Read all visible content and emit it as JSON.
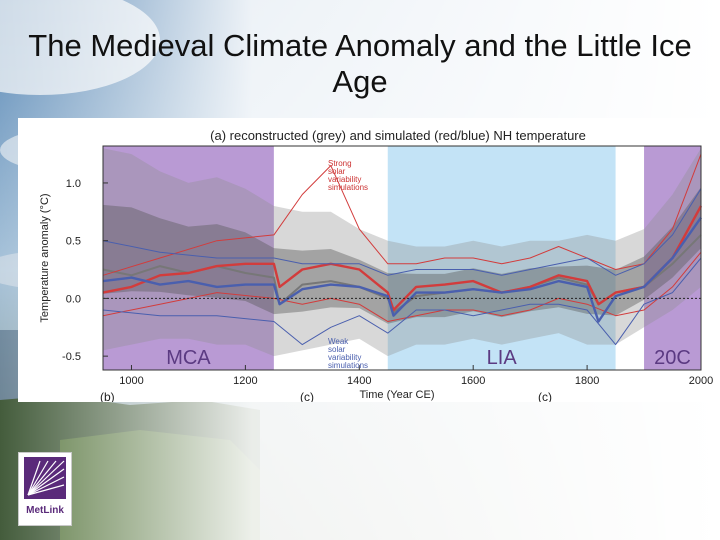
{
  "slide": {
    "title": "The Medieval Climate Anomaly and the Little Ice Age"
  },
  "logo": {
    "text": "MetLink"
  },
  "chart_data": {
    "type": "line",
    "title": "(a) reconstructed (grey) and simulated (red/blue) NH temperature",
    "xlabel": "Time (Year CE)",
    "ylabel": "Temperature anomaly (°C)",
    "xlim": [
      950,
      2000
    ],
    "ylim": [
      -0.62,
      1.32
    ],
    "x_ticks": [
      1000,
      1200,
      1400,
      1600,
      1800,
      2000
    ],
    "y_ticks": [
      1.0,
      0.5,
      0.0,
      -0.5
    ],
    "y_tick_labels": [
      "1.0",
      "0.5",
      "0.0",
      "-0.5"
    ],
    "reference_line": 0.0,
    "periods": [
      {
        "label": "MCA",
        "start": 950,
        "end": 1250,
        "color": "#b99ad4"
      },
      {
        "label": "LIA",
        "start": 1450,
        "end": 1850,
        "color": "#c3e3f6"
      },
      {
        "label": "20C",
        "start": 1900,
        "end": 2000,
        "color": "#b99ad4"
      }
    ],
    "annotations": [
      {
        "text": "Strong solar variability simulations",
        "lines": [
          "Strong",
          "solar",
          "variability",
          "simulations"
        ],
        "color": "#cc3333"
      },
      {
        "text": "Weak solar variability simulations",
        "lines": [
          "Weak",
          "solar",
          "variability",
          "simulations"
        ],
        "color": "#4a5fae"
      }
    ],
    "panel_labels": [
      "(b)",
      "(c)",
      "(c)"
    ],
    "reconstruction_band": {
      "x": [
        950,
        1000,
        1050,
        1100,
        1150,
        1200,
        1250,
        1300,
        1350,
        1400,
        1450,
        1500,
        1550,
        1600,
        1650,
        1700,
        1750,
        1800,
        1850,
        1900,
        1950,
        2000
      ],
      "lower": [
        -0.45,
        -0.4,
        -0.35,
        -0.35,
        -0.4,
        -0.4,
        -0.5,
        -0.45,
        -0.4,
        -0.35,
        -0.5,
        -0.4,
        -0.4,
        -0.35,
        -0.4,
        -0.35,
        -0.3,
        -0.4,
        -0.4,
        -0.25,
        -0.1,
        0.1
      ],
      "upper": [
        1.3,
        1.25,
        1.1,
        1.0,
        1.05,
        0.95,
        0.8,
        0.75,
        0.75,
        0.6,
        0.5,
        0.45,
        0.45,
        0.5,
        0.45,
        0.5,
        0.5,
        0.55,
        0.5,
        0.6,
        0.9,
        1.3
      ]
    },
    "series": [
      {
        "color": "#777777",
        "kind": "reconstruction",
        "x": [
          950,
          1000,
          1050,
          1100,
          1150,
          1200,
          1250,
          1260,
          1300,
          1350,
          1400,
          1450,
          1460,
          1500,
          1550,
          1600,
          1650,
          1700,
          1750,
          1800,
          1820,
          1850,
          1900,
          1950,
          2000
        ],
        "values": [
          0.25,
          0.2,
          0.28,
          0.22,
          0.28,
          0.22,
          0.18,
          -0.05,
          0.12,
          0.15,
          0.1,
          0.0,
          -0.12,
          0.02,
          0.05,
          0.08,
          0.05,
          0.1,
          0.18,
          0.12,
          -0.05,
          0.05,
          0.1,
          0.3,
          0.55
        ]
      },
      {
        "color": "#d23c3c",
        "kind": "strong-solar-mean",
        "x": [
          950,
          1000,
          1050,
          1100,
          1150,
          1200,
          1250,
          1260,
          1300,
          1350,
          1400,
          1450,
          1460,
          1500,
          1550,
          1600,
          1650,
          1700,
          1750,
          1800,
          1820,
          1850,
          1900,
          1950,
          2000
        ],
        "values": [
          0.05,
          0.1,
          0.2,
          0.22,
          0.28,
          0.3,
          0.3,
          0.1,
          0.25,
          0.3,
          0.25,
          0.05,
          -0.1,
          0.1,
          0.12,
          0.15,
          0.05,
          0.1,
          0.2,
          0.15,
          -0.05,
          0.05,
          0.1,
          0.35,
          0.8
        ]
      },
      {
        "color": "#d23c3c",
        "kind": "strong-solar-upper",
        "x": [
          950,
          1050,
          1150,
          1250,
          1300,
          1350,
          1400,
          1450,
          1500,
          1550,
          1600,
          1650,
          1700,
          1750,
          1800,
          1850,
          1900,
          1950,
          2000
        ],
        "values": [
          0.2,
          0.35,
          0.5,
          0.55,
          0.9,
          1.15,
          0.6,
          0.3,
          0.3,
          0.35,
          0.35,
          0.3,
          0.35,
          0.45,
          0.35,
          0.25,
          0.3,
          0.6,
          1.25
        ]
      },
      {
        "color": "#d23c3c",
        "kind": "strong-solar-lower",
        "x": [
          950,
          1050,
          1150,
          1250,
          1300,
          1350,
          1400,
          1450,
          1500,
          1550,
          1600,
          1650,
          1700,
          1750,
          1800,
          1850,
          1900,
          1950,
          2000
        ],
        "values": [
          -0.15,
          -0.05,
          0.05,
          0.0,
          -0.05,
          0.0,
          -0.05,
          -0.2,
          -0.15,
          -0.1,
          -0.1,
          -0.15,
          -0.1,
          0.0,
          -0.05,
          -0.15,
          -0.1,
          0.1,
          0.4
        ]
      },
      {
        "color": "#4a5fae",
        "kind": "weak-solar-mean",
        "x": [
          950,
          1000,
          1050,
          1100,
          1150,
          1200,
          1250,
          1260,
          1300,
          1350,
          1400,
          1450,
          1460,
          1500,
          1550,
          1600,
          1650,
          1700,
          1750,
          1800,
          1820,
          1850,
          1900,
          1950,
          2000
        ],
        "values": [
          0.15,
          0.18,
          0.12,
          0.15,
          0.1,
          0.12,
          0.12,
          -0.05,
          0.08,
          0.12,
          0.1,
          0.02,
          -0.15,
          0.05,
          0.05,
          0.08,
          0.05,
          0.08,
          0.15,
          0.1,
          -0.2,
          0.02,
          0.1,
          0.35,
          0.7
        ]
      },
      {
        "color": "#4a5fae",
        "kind": "weak-solar-upper",
        "x": [
          950,
          1050,
          1150,
          1250,
          1300,
          1350,
          1400,
          1450,
          1500,
          1550,
          1600,
          1650,
          1700,
          1750,
          1800,
          1850,
          1900,
          1950,
          2000
        ],
        "values": [
          0.5,
          0.4,
          0.35,
          0.35,
          0.3,
          0.3,
          0.3,
          0.2,
          0.25,
          0.25,
          0.25,
          0.2,
          0.25,
          0.3,
          0.35,
          0.2,
          0.3,
          0.55,
          0.95
        ]
      },
      {
        "color": "#4a5fae",
        "kind": "weak-solar-lower",
        "x": [
          950,
          1050,
          1150,
          1250,
          1300,
          1350,
          1400,
          1450,
          1500,
          1550,
          1600,
          1650,
          1700,
          1750,
          1800,
          1850,
          1900,
          1950,
          2000
        ],
        "values": [
          -0.1,
          -0.15,
          -0.15,
          -0.2,
          -0.4,
          -0.25,
          -0.15,
          -0.3,
          -0.1,
          -0.1,
          -0.15,
          -0.1,
          -0.05,
          -0.05,
          -0.1,
          -0.4,
          -0.05,
          0.05,
          0.35
        ]
      }
    ]
  }
}
